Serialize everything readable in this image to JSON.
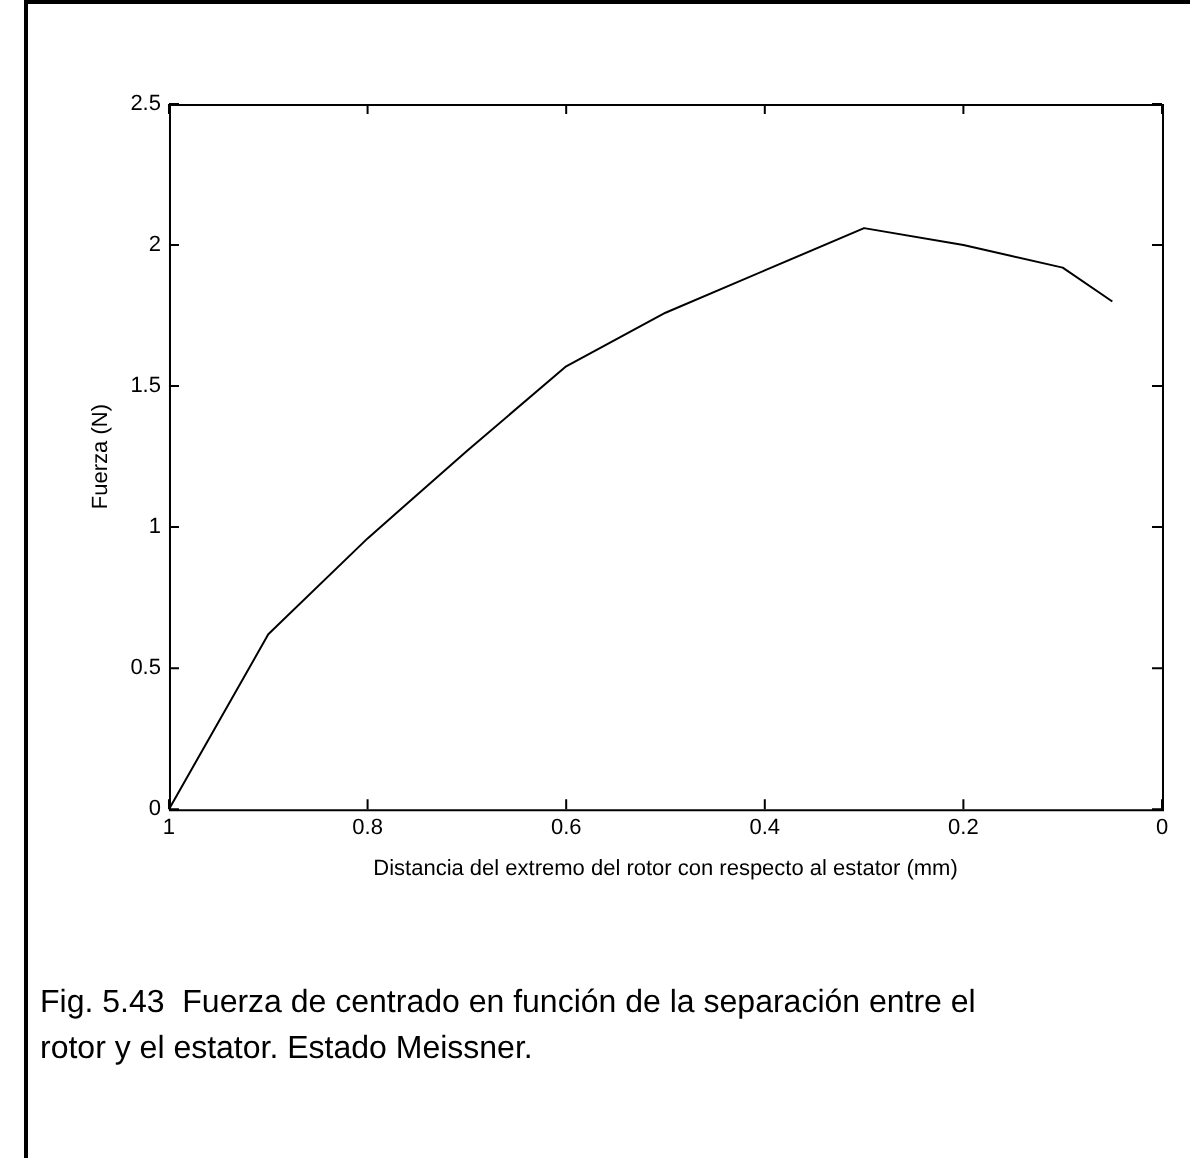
{
  "chart_data": {
    "type": "line",
    "xlabel": "Distancia del extremo del rotor con respecto al estator (mm)",
    "ylabel": "Fuerza (N)",
    "x": [
      1,
      0.9,
      0.8,
      0.7,
      0.6,
      0.5,
      0.4,
      0.3,
      0.2,
      0.1,
      0.05
    ],
    "series": [
      {
        "color": "#000000",
        "values": [
          0,
          0.62,
          0.96,
          1.27,
          1.57,
          1.76,
          1.91,
          2.06,
          2.0,
          1.92,
          1.8
        ]
      }
    ],
    "xlim": [
      1,
      0
    ],
    "xticks": [
      1,
      0.8,
      0.6,
      0.4,
      0.2,
      0
    ],
    "ylim": [
      0,
      2.5
    ],
    "yticks": [
      0,
      0.5,
      1,
      1.5,
      2,
      2.5
    ],
    "grid": false,
    "legend": false,
    "marker": "none",
    "line_style": "solid",
    "annotations": [
      "Fig. 5.43  Fuerza de centrado en función de la separación entre el rotor y el estator. Estado Meissner."
    ]
  }
}
